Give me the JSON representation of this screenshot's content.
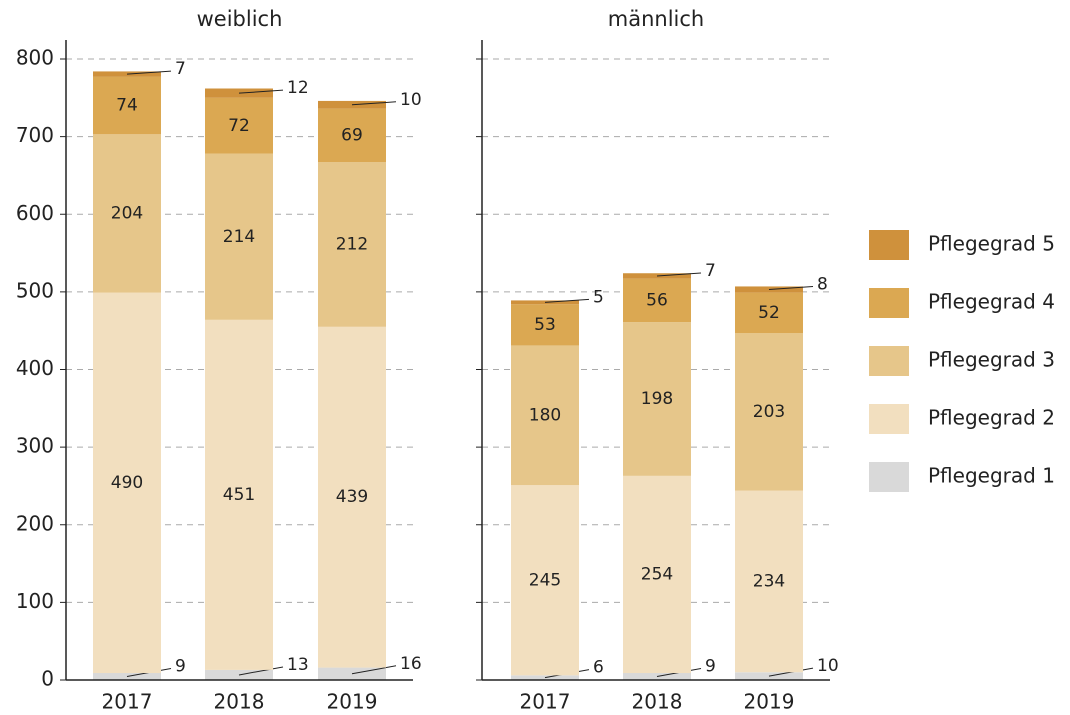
{
  "chart_data": [
    {
      "type": "stacked_bar",
      "title": "weiblich",
      "categories": [
        "2017",
        "2018",
        "2019"
      ],
      "ylim": [
        0,
        800
      ],
      "yticks": [
        0,
        100,
        200,
        300,
        400,
        500,
        600,
        700,
        800
      ],
      "grid": true,
      "series": [
        {
          "name": "Pflegegrad 1",
          "color": "#d9d9d9",
          "values": [
            9,
            13,
            16
          ]
        },
        {
          "name": "Pflegegrad 2",
          "color": "#f2dfbf",
          "values": [
            490,
            451,
            439
          ]
        },
        {
          "name": "Pflegegrad 3",
          "color": "#e6c68a",
          "values": [
            204,
            214,
            212
          ]
        },
        {
          "name": "Pflegegrad 4",
          "color": "#dba852",
          "values": [
            74,
            72,
            69
          ]
        },
        {
          "name": "Pflegegrad 5",
          "color": "#cf913c",
          "values": [
            7,
            12,
            10
          ]
        }
      ]
    },
    {
      "type": "stacked_bar",
      "title": "männlich",
      "categories": [
        "2017",
        "2018",
        "2019"
      ],
      "ylim": [
        0,
        800
      ],
      "yticks": [
        0,
        100,
        200,
        300,
        400,
        500,
        600,
        700,
        800
      ],
      "grid": true,
      "series": [
        {
          "color": "#d9d9d9",
          "values": [
            6,
            9,
            10
          ]
        },
        {
          "color": "#f2dfbf",
          "values": [
            245,
            254,
            234
          ]
        },
        {
          "color": "#e6c68a",
          "values": [
            180,
            198,
            203
          ]
        },
        {
          "color": "#dba852",
          "values": [
            53,
            56,
            52
          ]
        },
        {
          "color": "#cf913c",
          "values": [
            5,
            7,
            8
          ]
        }
      ]
    }
  ]
}
